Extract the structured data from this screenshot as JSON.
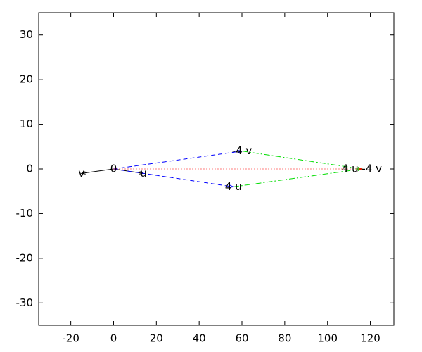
{
  "chart_data": {
    "type": "vector",
    "xlim": [
      -35,
      131
    ],
    "ylim": [
      -35,
      35
    ],
    "xticks": [
      -20,
      0,
      20,
      40,
      60,
      80,
      100,
      120
    ],
    "yticks": [
      -30,
      -20,
      -10,
      0,
      10,
      20,
      30
    ],
    "segments": [
      {
        "from": [
          0,
          0
        ],
        "to": [
          14,
          -1
        ],
        "color": "#000000",
        "dash": "solid"
      },
      {
        "from": [
          0,
          0
        ],
        "to": [
          -15,
          -1
        ],
        "color": "#000000",
        "dash": "solid"
      },
      {
        "from": [
          0,
          0
        ],
        "to": [
          56,
          -4
        ],
        "color": "#0000ff",
        "dash": "dashed"
      },
      {
        "from": [
          0,
          0
        ],
        "to": [
          60,
          4
        ],
        "color": "#0000ff",
        "dash": "dashed"
      },
      {
        "from": [
          56,
          -4
        ],
        "to": [
          116,
          0
        ],
        "color": "#00dd00",
        "dash": "dashdot"
      },
      {
        "from": [
          60,
          4
        ],
        "to": [
          116,
          0
        ],
        "color": "#00dd00",
        "dash": "dashdot"
      },
      {
        "from": [
          0,
          0
        ],
        "to": [
          116,
          0
        ],
        "color": "#ff0000",
        "dash": "dotted"
      }
    ],
    "labels": [
      {
        "text": "0",
        "x": 0,
        "y": 0
      },
      {
        "text": "u",
        "x": 14,
        "y": -1
      },
      {
        "text": "v",
        "x": -15,
        "y": -1
      },
      {
        "text": "4 u",
        "x": 56,
        "y": -4
      },
      {
        "text": "-4 v",
        "x": 60,
        "y": 4
      },
      {
        "text": "4 u -4 v",
        "x": 116,
        "y": 0
      }
    ]
  }
}
